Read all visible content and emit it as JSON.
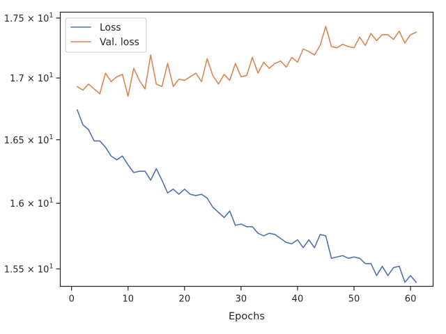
{
  "chart_data": {
    "type": "line",
    "title": "",
    "xlabel": "Epochs",
    "ylabel": "",
    "y_scale": "log",
    "xlim": [
      -2,
      64
    ],
    "ylim": [
      15.37,
      17.55
    ],
    "x_ticks": [
      0,
      10,
      20,
      30,
      40,
      50,
      60
    ],
    "x_tick_labels": [
      "0",
      "10",
      "20",
      "30",
      "40",
      "50",
      "60"
    ],
    "y_ticks": [
      15.5,
      16.0,
      16.5,
      17.0,
      17.5
    ],
    "y_tick_labels": [
      {
        "mantissa": "1.55",
        "exp": "1"
      },
      {
        "mantissa": "1.6",
        "exp": "1"
      },
      {
        "mantissa": "1.65",
        "exp": "1"
      },
      {
        "mantissa": "1.7",
        "exp": "1"
      },
      {
        "mantissa": "1.75",
        "exp": "1"
      }
    ],
    "grid": false,
    "legend_position": "upper-left",
    "x": [
      1,
      2,
      3,
      4,
      5,
      6,
      7,
      8,
      9,
      10,
      11,
      12,
      13,
      14,
      15,
      16,
      17,
      18,
      19,
      20,
      21,
      22,
      23,
      24,
      25,
      26,
      27,
      28,
      29,
      30,
      31,
      32,
      33,
      34,
      35,
      36,
      37,
      38,
      39,
      40,
      41,
      42,
      43,
      44,
      45,
      46,
      47,
      48,
      49,
      50,
      51,
      52,
      53,
      54,
      55,
      56,
      57,
      58,
      59,
      60,
      61
    ],
    "series": [
      {
        "name": "Loss",
        "color": "#4c72b0",
        "values": [
          16.74,
          16.62,
          16.58,
          16.49,
          16.49,
          16.44,
          16.37,
          16.34,
          16.37,
          16.3,
          16.24,
          16.25,
          16.25,
          16.18,
          16.27,
          16.18,
          16.08,
          16.11,
          16.07,
          16.11,
          16.07,
          16.06,
          16.07,
          16.04,
          15.97,
          15.93,
          15.89,
          15.94,
          15.83,
          15.84,
          15.82,
          15.82,
          15.77,
          15.75,
          15.77,
          15.76,
          15.73,
          15.7,
          15.69,
          15.72,
          15.66,
          15.72,
          15.66,
          15.76,
          15.75,
          15.58,
          15.59,
          15.6,
          15.58,
          15.59,
          15.58,
          15.54,
          15.54,
          15.45,
          15.52,
          15.45,
          15.51,
          15.52,
          15.4,
          15.45,
          15.4
        ]
      },
      {
        "name": "Val. loss",
        "color": "#dd8452",
        "values": [
          16.93,
          16.9,
          16.95,
          16.91,
          16.87,
          17.04,
          16.97,
          17.01,
          17.03,
          16.85,
          17.08,
          16.98,
          16.91,
          17.19,
          16.95,
          16.93,
          17.12,
          16.93,
          16.99,
          16.98,
          17.01,
          17.04,
          16.97,
          17.16,
          17.02,
          16.95,
          17.03,
          16.98,
          17.12,
          17.01,
          17.02,
          17.17,
          17.04,
          17.13,
          17.08,
          17.12,
          17.14,
          17.09,
          17.17,
          17.13,
          17.24,
          17.22,
          17.19,
          17.27,
          17.43,
          17.26,
          17.25,
          17.28,
          17.26,
          17.25,
          17.34,
          17.27,
          17.37,
          17.31,
          17.36,
          17.36,
          17.32,
          17.39,
          17.29,
          17.36,
          17.38
        ]
      }
    ]
  }
}
